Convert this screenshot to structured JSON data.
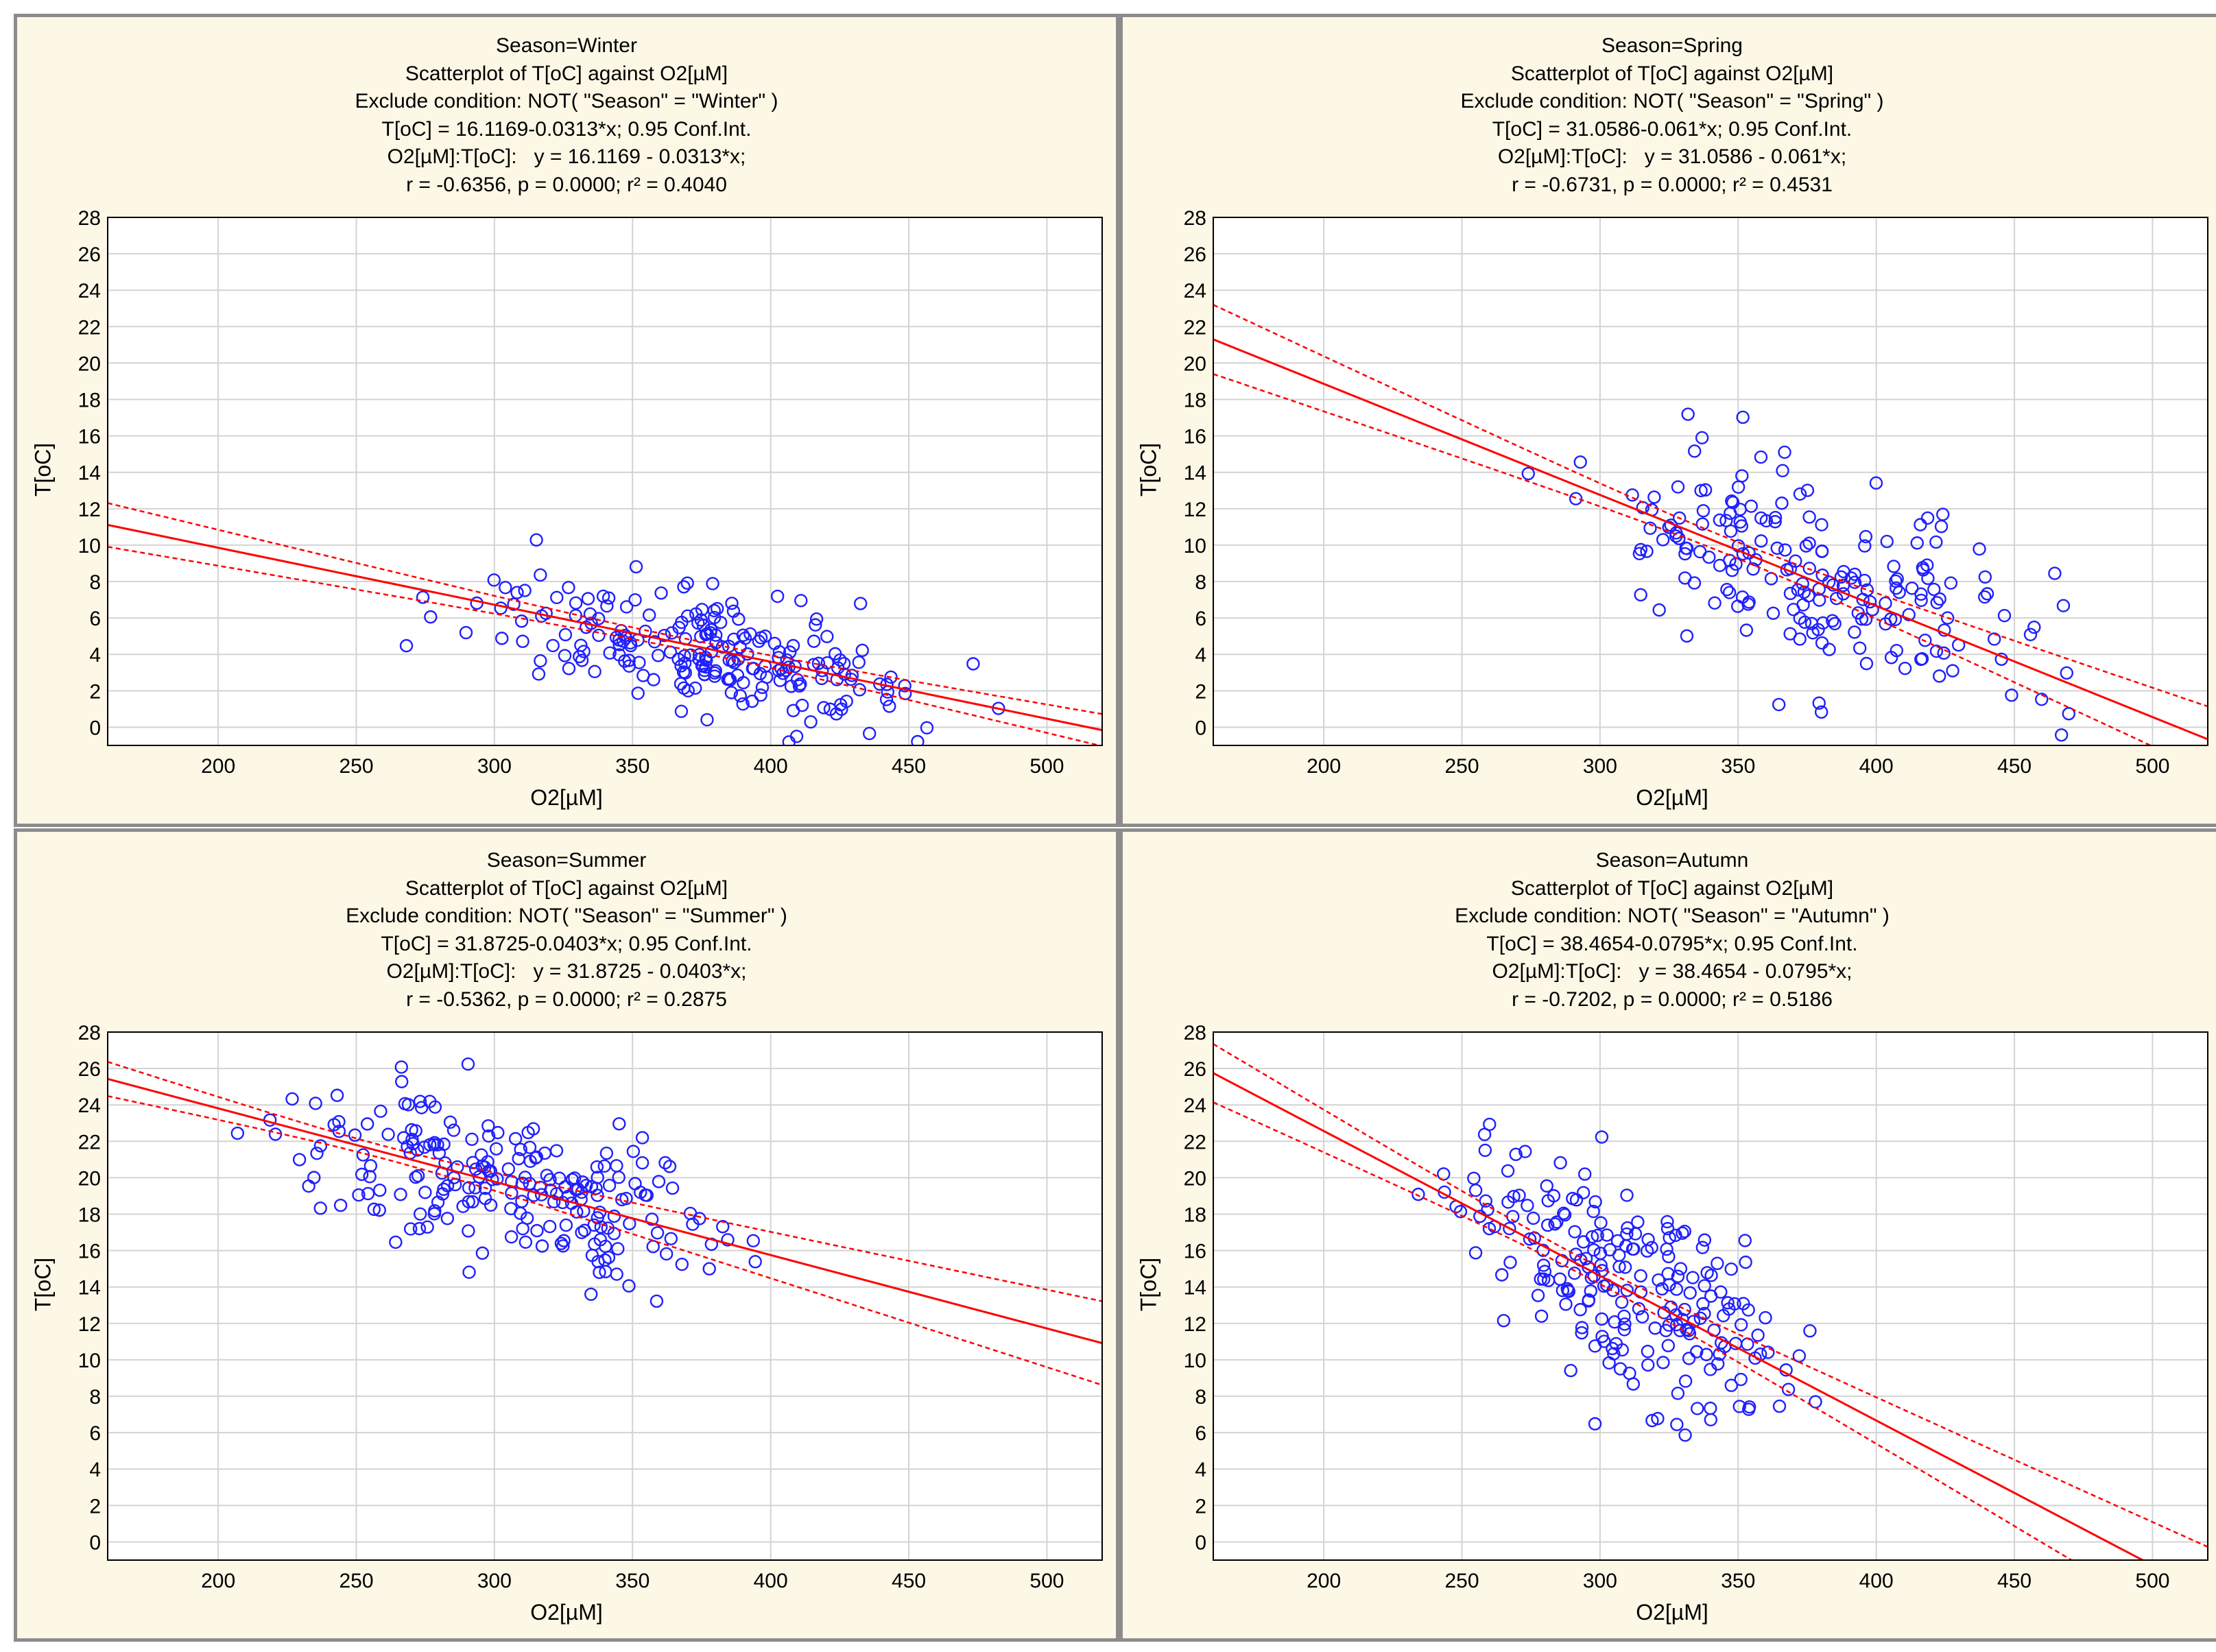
{
  "colors": {
    "panel_bg": "#fdf7e6",
    "plot_bg": "#ffffff",
    "grid": "#d3d3d3",
    "points": "#2020ff",
    "fit_line": "#ff0000",
    "conf_band": "#ff0000"
  },
  "chart_data": [
    {
      "type": "scatter",
      "header": {
        "line1": "Season=Winter",
        "line2": "Scatterplot of T[oC] against O2[µM]",
        "line3": "Exclude condition: NOT( \"Season\" = \"Winter\" )",
        "line4": "T[oC] = 16.1169-0.0313*x; 0.95 Conf.Int.",
        "line5": "O2[µM]:T[oC]:   y = 16.1169 - 0.0313*x;",
        "line6": "r = -0.6356, p = 0.0000; r² = 0.4040"
      },
      "xlabel": "O2[µM]",
      "ylabel": "T[oC]",
      "xlim": [
        160,
        520
      ],
      "ylim": [
        -1,
        28
      ],
      "x_ticks": [
        200,
        250,
        300,
        350,
        400,
        450,
        500
      ],
      "y_ticks": [
        0,
        2,
        4,
        6,
        8,
        10,
        12,
        14,
        16,
        18,
        20,
        22,
        24,
        26,
        28
      ],
      "fit": {
        "intercept": 16.1169,
        "slope": -0.0313,
        "ci_halfwidth_at_ends": 1.2,
        "ci_halfwidth_at_center": 0.3,
        "x_center": 370
      },
      "points": {
        "n": 220,
        "x_range": [
          258,
          492
        ],
        "seed": 11,
        "noise_sd": 1.7
      }
    },
    {
      "type": "scatter",
      "header": {
        "line1": "Season=Spring",
        "line2": "Scatterplot of T[oC] against O2[µM]",
        "line3": "Exclude condition: NOT( \"Season\" = \"Spring\" )",
        "line4": "T[oC] = 31.0586-0.061*x; 0.95 Conf.Int.",
        "line5": "O2[µM]:T[oC]:   y = 31.0586 - 0.061*x;",
        "line6": "r = -0.6731, p = 0.0000; r² = 0.4531"
      },
      "xlabel": "O2[µM]",
      "ylabel": "T[oC]",
      "xlim": [
        160,
        520
      ],
      "ylim": [
        -1,
        28
      ],
      "x_ticks": [
        200,
        250,
        300,
        350,
        400,
        450,
        500
      ],
      "y_ticks": [
        0,
        2,
        4,
        6,
        8,
        10,
        12,
        14,
        16,
        18,
        20,
        22,
        24,
        26,
        28
      ],
      "fit": {
        "intercept": 31.0586,
        "slope": -0.061,
        "ci_halfwidth_at_ends": 1.9,
        "ci_halfwidth_at_center": 0.45,
        "x_center": 345
      },
      "points": {
        "n": 200,
        "x_range": [
          262,
          500
        ],
        "seed": 23,
        "noise_sd": 2.6
      }
    },
    {
      "type": "scatter",
      "header": {
        "line1": "Season=Summer",
        "line2": "Scatterplot of T[oC] against O2[µM]",
        "line3": "Exclude condition: NOT( \"Season\" = \"Summer\" )",
        "line4": "T[oC] = 31.8725-0.0403*x; 0.95 Conf.Int.",
        "line5": "O2[µM]:T[oC]:   y = 31.8725 - 0.0403*x;",
        "line6": "r = -0.5362, p = 0.0000; r² = 0.2875"
      },
      "xlabel": "O2[µM]",
      "ylabel": "T[oC]",
      "xlim": [
        160,
        520
      ],
      "ylim": [
        -1,
        28
      ],
      "x_ticks": [
        200,
        250,
        300,
        350,
        400,
        450,
        500
      ],
      "y_ticks": [
        0,
        2,
        4,
        6,
        8,
        10,
        12,
        14,
        16,
        18,
        20,
        22,
        24,
        26,
        28
      ],
      "fit": {
        "intercept": 31.8725,
        "slope": -0.0403,
        "ci_halfwidth_at_ends": 2.3,
        "ci_halfwidth_at_center": 0.35,
        "x_center": 260
      },
      "points": {
        "n": 220,
        "x_range": [
          186,
          418
        ],
        "seed": 37,
        "noise_sd": 2.0
      }
    },
    {
      "type": "scatter",
      "header": {
        "line1": "Season=Autumn",
        "line2": "Scatterplot of T[oC] against O2[µM]",
        "line3": "Exclude condition: NOT( \"Season\" = \"Autumn\" )",
        "line4": "T[oC] = 38.4654-0.0795*x; 0.95 Conf.Int.",
        "line5": "O2[µM]:T[oC]:   y = 38.4654 - 0.0795*x;",
        "line6": "r = -0.7202, p = 0.0000; r² = 0.5186"
      },
      "xlabel": "O2[µM]",
      "ylabel": "T[oC]",
      "xlim": [
        160,
        520
      ],
      "ylim": [
        -1,
        28
      ],
      "x_ticks": [
        200,
        250,
        300,
        350,
        400,
        450,
        500
      ],
      "y_ticks": [
        0,
        2,
        4,
        6,
        8,
        10,
        12,
        14,
        16,
        18,
        20,
        22,
        24,
        26,
        28
      ],
      "fit": {
        "intercept": 38.4654,
        "slope": -0.0795,
        "ci_halfwidth_at_ends": 2.6,
        "ci_halfwidth_at_center": 0.45,
        "x_center": 295
      },
      "points": {
        "n": 220,
        "x_range": [
          222,
          396
        ],
        "seed": 51,
        "noise_sd": 2.6
      }
    }
  ]
}
